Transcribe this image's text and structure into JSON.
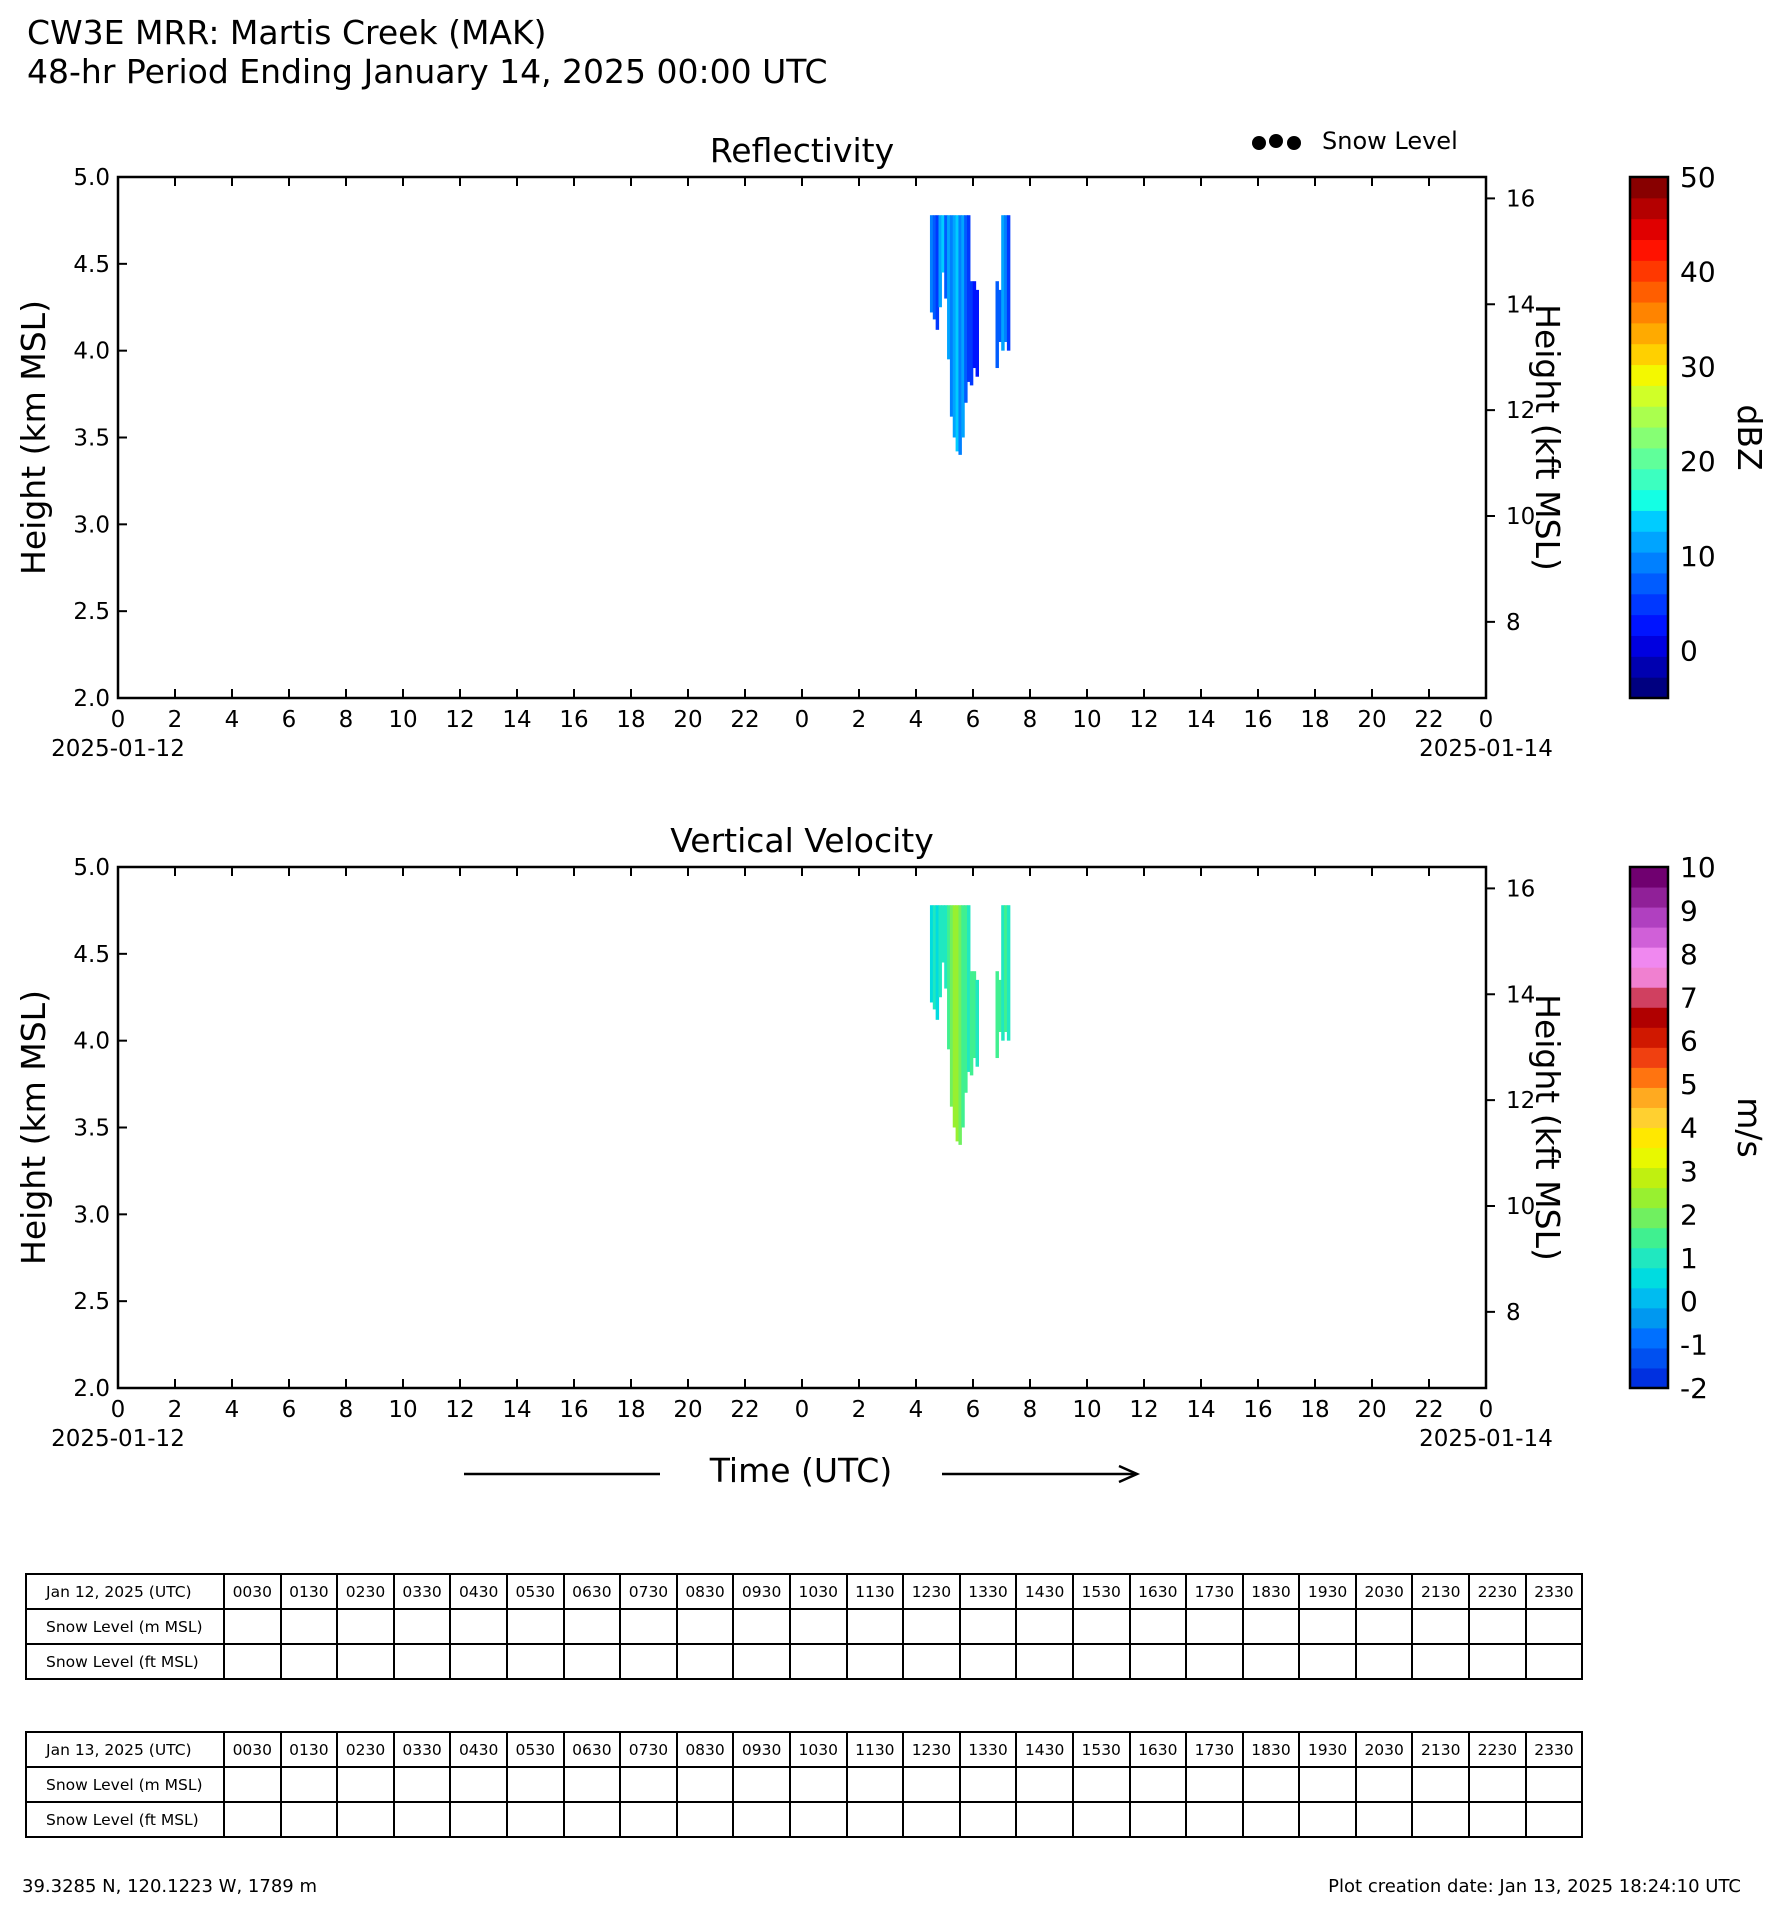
{
  "header": {
    "title_line1": "CW3E MRR: Martis Creek (MAK)",
    "title_line2": "48-hr Period Ending January 14, 2025 00:00 UTC"
  },
  "legend": {
    "snow_level_label": "Snow Level"
  },
  "chart_data": [
    {
      "type": "heatmap",
      "title": "Reflectivity",
      "ylabel": "Height (km MSL)",
      "ylabel_right": "Height (kft MSL)",
      "ylim": [
        2.0,
        5.0
      ],
      "yticks": [
        "2.0",
        "2.5",
        "3.0",
        "3.5",
        "4.0",
        "4.5",
        "5.0"
      ],
      "yticks_right": [
        "8",
        "10",
        "12",
        "14",
        "16"
      ],
      "xticks": [
        "0",
        "2",
        "4",
        "6",
        "8",
        "10",
        "12",
        "14",
        "16",
        "18",
        "20",
        "22",
        "0",
        "2",
        "4",
        "6",
        "8",
        "10",
        "12",
        "14",
        "16",
        "18",
        "20",
        "22",
        "0"
      ],
      "xdate_left": "2025-01-12",
      "xdate_right": "2025-01-14",
      "xlim_hours": [
        0,
        48
      ],
      "colorbar": {
        "label": "dBZ",
        "range": [
          -5,
          50
        ],
        "ticks": [
          "50",
          "40",
          "30",
          "20",
          "10",
          "0"
        ],
        "colors": [
          "#000080",
          "#0000b0",
          "#0000e0",
          "#0014ff",
          "#0038ff",
          "#005cff",
          "#0080ff",
          "#00a4ff",
          "#00ccff",
          "#14ffe4",
          "#3cffc0",
          "#60ff9a",
          "#86ff74",
          "#aaff4e",
          "#d0ff28",
          "#f4f800",
          "#ffd000",
          "#ffaa00",
          "#ff8400",
          "#ff5e00",
          "#ff3800",
          "#ff1200",
          "#e00000",
          "#b40000",
          "#880000"
        ]
      },
      "echo_columns": [
        {
          "hour": 28.55,
          "top": 4.78,
          "bottom": 4.22,
          "value": 10
        },
        {
          "hour": 28.65,
          "top": 4.78,
          "bottom": 4.18,
          "value": 6
        },
        {
          "hour": 28.75,
          "top": 4.78,
          "bottom": 4.12,
          "value": 4
        },
        {
          "hour": 28.85,
          "top": 4.78,
          "bottom": 4.25,
          "value": 12
        },
        {
          "hour": 28.95,
          "top": 4.78,
          "bottom": 4.45,
          "value": 14
        },
        {
          "hour": 29.05,
          "top": 4.78,
          "bottom": 4.3,
          "value": 8
        },
        {
          "hour": 29.15,
          "top": 4.78,
          "bottom": 3.95,
          "value": 12
        },
        {
          "hour": 29.25,
          "top": 4.78,
          "bottom": 3.62,
          "value": 9
        },
        {
          "hour": 29.35,
          "top": 4.78,
          "bottom": 3.5,
          "value": 11
        },
        {
          "hour": 29.45,
          "top": 4.78,
          "bottom": 3.42,
          "value": 13
        },
        {
          "hour": 29.55,
          "top": 4.78,
          "bottom": 3.4,
          "value": 10
        },
        {
          "hour": 29.65,
          "top": 4.78,
          "bottom": 3.5,
          "value": 12
        },
        {
          "hour": 29.75,
          "top": 4.78,
          "bottom": 3.7,
          "value": 8
        },
        {
          "hour": 29.85,
          "top": 4.78,
          "bottom": 3.82,
          "value": 5
        },
        {
          "hour": 29.95,
          "top": 4.4,
          "bottom": 3.8,
          "value": 4
        },
        {
          "hour": 30.05,
          "top": 4.4,
          "bottom": 3.9,
          "value": 3
        },
        {
          "hour": 30.15,
          "top": 4.35,
          "bottom": 3.85,
          "value": 2
        },
        {
          "hour": 30.85,
          "top": 4.4,
          "bottom": 3.9,
          "value": 6
        },
        {
          "hour": 30.95,
          "top": 4.35,
          "bottom": 4.05,
          "value": 8
        },
        {
          "hour": 31.05,
          "top": 4.78,
          "bottom": 4.0,
          "value": 12
        },
        {
          "hour": 31.15,
          "top": 4.78,
          "bottom": 4.05,
          "value": 10
        },
        {
          "hour": 31.25,
          "top": 4.78,
          "bottom": 4.0,
          "value": 4
        }
      ]
    },
    {
      "type": "heatmap",
      "title": "Vertical Velocity",
      "ylabel": "Height (km MSL)",
      "ylabel_right": "Height (kft MSL)",
      "ylim": [
        2.0,
        5.0
      ],
      "yticks": [
        "2.0",
        "2.5",
        "3.0",
        "3.5",
        "4.0",
        "4.5",
        "5.0"
      ],
      "yticks_right": [
        "8",
        "10",
        "12",
        "14",
        "16"
      ],
      "xticks": [
        "0",
        "2",
        "4",
        "6",
        "8",
        "10",
        "12",
        "14",
        "16",
        "18",
        "20",
        "22",
        "0",
        "2",
        "4",
        "6",
        "8",
        "10",
        "12",
        "14",
        "16",
        "18",
        "20",
        "22",
        "0"
      ],
      "xdate_left": "2025-01-12",
      "xdate_right": "2025-01-14",
      "xlim_hours": [
        0,
        48
      ],
      "xlabel": "Time (UTC)",
      "colorbar": {
        "label": "m/s",
        "range": [
          -2,
          10
        ],
        "ticks": [
          "10",
          "9",
          "8",
          "7",
          "6",
          "5",
          "4",
          "3",
          "2",
          "1",
          "0",
          "-1",
          "-2"
        ],
        "colors": [
          "#0030e0",
          "#0050f0",
          "#0070ff",
          "#0098f0",
          "#00bcf0",
          "#00dce0",
          "#20e8c0",
          "#40f090",
          "#70f060",
          "#98f030",
          "#c0f010",
          "#e8f800",
          "#ffe800",
          "#ffd030",
          "#ffaa20",
          "#ff7410",
          "#f04010",
          "#d01800",
          "#b00000",
          "#d04060",
          "#f080d0",
          "#f088f0",
          "#d060d8",
          "#b040c0",
          "#902098",
          "#700070"
        ]
      },
      "echo_columns": [
        {
          "hour": 28.55,
          "top": 4.78,
          "bottom": 4.22,
          "value": 0.6
        },
        {
          "hour": 28.65,
          "top": 4.78,
          "bottom": 4.18,
          "value": 0.8
        },
        {
          "hour": 28.75,
          "top": 4.78,
          "bottom": 4.12,
          "value": 0.7
        },
        {
          "hour": 28.85,
          "top": 4.78,
          "bottom": 4.25,
          "value": 0.9
        },
        {
          "hour": 28.95,
          "top": 4.78,
          "bottom": 4.45,
          "value": 1.0
        },
        {
          "hour": 29.05,
          "top": 4.78,
          "bottom": 4.3,
          "value": 1.2
        },
        {
          "hour": 29.15,
          "top": 4.78,
          "bottom": 3.95,
          "value": 1.4
        },
        {
          "hour": 29.25,
          "top": 4.78,
          "bottom": 3.62,
          "value": 2.0
        },
        {
          "hour": 29.35,
          "top": 4.78,
          "bottom": 3.5,
          "value": 2.3
        },
        {
          "hour": 29.45,
          "top": 4.78,
          "bottom": 3.42,
          "value": 2.2
        },
        {
          "hour": 29.55,
          "top": 4.78,
          "bottom": 3.4,
          "value": 1.9
        },
        {
          "hour": 29.65,
          "top": 4.78,
          "bottom": 3.5,
          "value": 1.6
        },
        {
          "hour": 29.75,
          "top": 4.78,
          "bottom": 3.7,
          "value": 1.4
        },
        {
          "hour": 29.85,
          "top": 4.78,
          "bottom": 3.82,
          "value": 1.2
        },
        {
          "hour": 29.95,
          "top": 4.4,
          "bottom": 3.8,
          "value": 1.5
        },
        {
          "hour": 30.05,
          "top": 4.4,
          "bottom": 3.9,
          "value": 1.3
        },
        {
          "hour": 30.15,
          "top": 4.35,
          "bottom": 3.85,
          "value": 1.1
        },
        {
          "hour": 30.85,
          "top": 4.4,
          "bottom": 3.9,
          "value": 1.4
        },
        {
          "hour": 30.95,
          "top": 4.35,
          "bottom": 4.05,
          "value": 1.6
        },
        {
          "hour": 31.05,
          "top": 4.78,
          "bottom": 4.0,
          "value": 1.2
        },
        {
          "hour": 31.15,
          "top": 4.78,
          "bottom": 4.05,
          "value": 1.5
        },
        {
          "hour": 31.25,
          "top": 4.78,
          "bottom": 4.0,
          "value": 0.9
        }
      ]
    }
  ],
  "tables": [
    {
      "header": "Jan 12, 2025 (UTC)",
      "rows": [
        "Snow Level (m MSL)",
        "Snow Level (ft MSL)"
      ],
      "times": [
        "0030",
        "0130",
        "0230",
        "0330",
        "0430",
        "0530",
        "0630",
        "0730",
        "0830",
        "0930",
        "1030",
        "1130",
        "1230",
        "1330",
        "1430",
        "1530",
        "1630",
        "1730",
        "1830",
        "1930",
        "2030",
        "2130",
        "2230",
        "2330"
      ]
    },
    {
      "header": "Jan 13, 2025 (UTC)",
      "rows": [
        "Snow Level (m MSL)",
        "Snow Level (ft MSL)"
      ],
      "times": [
        "0030",
        "0130",
        "0230",
        "0330",
        "0430",
        "0530",
        "0630",
        "0730",
        "0830",
        "0930",
        "1030",
        "1130",
        "1230",
        "1330",
        "1430",
        "1530",
        "1630",
        "1730",
        "1830",
        "1930",
        "2030",
        "2130",
        "2230",
        "2330"
      ]
    }
  ],
  "footer": {
    "location": "39.3285 N, 120.1223 W, 1789 m",
    "created": "Plot creation date: Jan 13, 2025 18:24:10 UTC"
  }
}
